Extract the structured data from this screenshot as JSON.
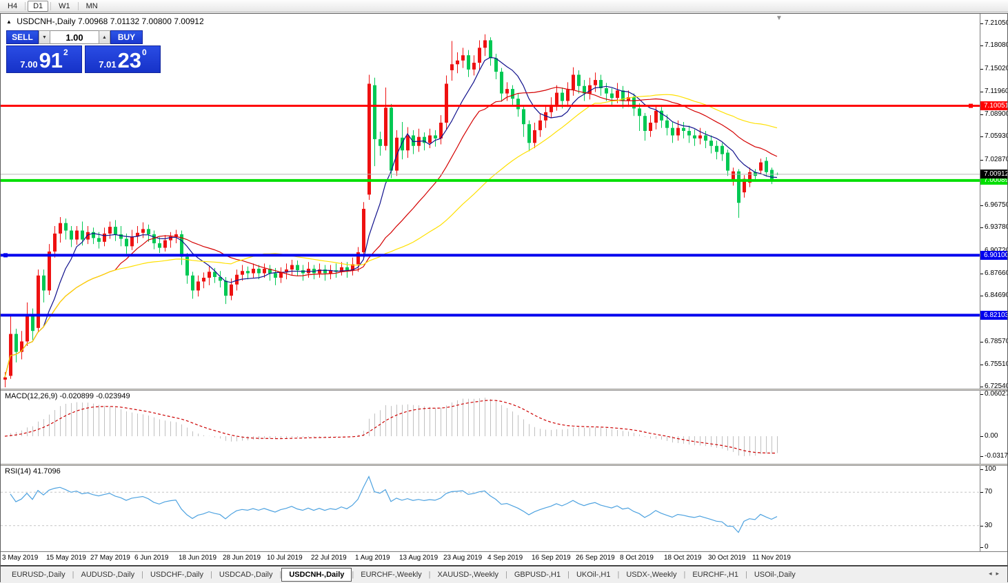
{
  "toolbar": {
    "timeframes": [
      {
        "label": "H4",
        "active": false
      },
      {
        "label": "D1",
        "active": true
      },
      {
        "label": "W1",
        "active": false
      },
      {
        "label": "MN",
        "active": false
      }
    ]
  },
  "chart": {
    "collapse_icon": "▲",
    "shift_icon": "▼",
    "symbol_title": "USDCNH-,Daily",
    "ohlc": {
      "open": "7.00968",
      "high": "7.01132",
      "low": "7.00800",
      "close": "7.00912"
    },
    "trade_panel": {
      "sell_label": "SELL",
      "buy_label": "BUY",
      "volume": "1.00",
      "down_arrow": "▼",
      "up_arrow": "▲",
      "sell_price_prefix": "7.00",
      "sell_price_big": "91",
      "sell_price_sup": "2",
      "buy_price_prefix": "7.01",
      "buy_price_big": "23",
      "buy_price_sup": "0"
    }
  },
  "chart_data": {
    "type": "candlestick",
    "title": "USDCNH-,Daily",
    "symbol": "USDCNH",
    "timeframe": "Daily",
    "ylim": [
      6.7254,
      7.2105
    ],
    "price_axis_ticks": [
      7.2105,
      7.1808,
      7.1502,
      7.1196,
      7.089,
      7.0593,
      7.0287,
      6.9981,
      6.9675,
      6.9378,
      6.9072,
      6.8766,
      6.8469,
      6.8163,
      6.7857,
      6.7551,
      6.7254
    ],
    "x_labels": [
      "3 May 2019",
      "15 May 2019",
      "27 May 2019",
      "6 Jun 2019",
      "18 Jun 2019",
      "28 Jun 2019",
      "10 Jul 2019",
      "22 Jul 2019",
      "1 Aug 2019",
      "13 Aug 2019",
      "23 Aug 2019",
      "4 Sep 2019",
      "16 Sep 2019",
      "26 Sep 2019",
      "8 Oct 2019",
      "18 Oct 2019",
      "30 Oct 2019",
      "11 Nov 2019"
    ],
    "bars_per_label": 8,
    "bull_color": "#EE1111",
    "bear_color": "#00C853",
    "hlines": [
      {
        "price": 7.10051,
        "label": "7.10051",
        "color": "#FF0000",
        "width": 3
      },
      {
        "price": 7.00089,
        "label": "7.00089",
        "color": "#00DE00",
        "width": 4
      },
      {
        "price": 6.901,
        "label": "6.90100",
        "color": "#0000EE",
        "width": 4
      },
      {
        "price": 6.82103,
        "label": "6.82103",
        "color": "#0000EE",
        "width": 4
      }
    ],
    "current_price": {
      "value": 7.00912,
      "label": "7.00912",
      "line_color": "#B8B8B8",
      "tag_color": "#000000"
    },
    "ma_lines": [
      {
        "period": 8,
        "color": "#10108C"
      },
      {
        "period": 21,
        "color": "#D40000"
      },
      {
        "period": 42,
        "color": "#FFE000"
      }
    ],
    "candles": [
      [
        6.735,
        6.745,
        6.722,
        6.738
      ],
      [
        6.74,
        6.822,
        6.736,
        6.796
      ],
      [
        6.796,
        6.803,
        6.758,
        6.772
      ],
      [
        6.772,
        6.8,
        6.762,
        6.786
      ],
      [
        6.786,
        6.838,
        6.78,
        6.822
      ],
      [
        6.822,
        6.83,
        6.788,
        6.8
      ],
      [
        6.804,
        6.882,
        6.798,
        6.874
      ],
      [
        6.874,
        6.882,
        6.838,
        6.854
      ],
      [
        6.854,
        6.916,
        6.848,
        6.906
      ],
      [
        6.906,
        6.94,
        6.898,
        6.93
      ],
      [
        6.93,
        6.952,
        6.918,
        6.944
      ],
      [
        6.944,
        6.95,
        6.922,
        6.934
      ],
      [
        6.934,
        6.94,
        6.912,
        6.922
      ],
      [
        6.922,
        6.94,
        6.915,
        6.934
      ],
      [
        6.934,
        6.946,
        6.914,
        6.922
      ],
      [
        6.922,
        6.94,
        6.916,
        6.932
      ],
      [
        6.932,
        6.938,
        6.916,
        6.924
      ],
      [
        6.924,
        6.932,
        6.91,
        6.919
      ],
      [
        6.919,
        6.938,
        6.913,
        6.93
      ],
      [
        6.93,
        6.946,
        6.923,
        6.939
      ],
      [
        6.939,
        6.948,
        6.92,
        6.929
      ],
      [
        6.929,
        6.94,
        6.913,
        6.923
      ],
      [
        6.923,
        6.93,
        6.903,
        6.913
      ],
      [
        6.913,
        6.935,
        6.908,
        6.926
      ],
      [
        6.926,
        6.94,
        6.917,
        6.931
      ],
      [
        6.931,
        6.945,
        6.924,
        6.936
      ],
      [
        6.936,
        6.942,
        6.919,
        6.929
      ],
      [
        6.929,
        6.934,
        6.909,
        6.917
      ],
      [
        6.917,
        6.925,
        6.904,
        6.911
      ],
      [
        6.911,
        6.928,
        6.906,
        6.921
      ],
      [
        6.921,
        6.932,
        6.911,
        6.926
      ],
      [
        6.926,
        6.935,
        6.917,
        6.929
      ],
      [
        6.929,
        6.934,
        6.888,
        6.899
      ],
      [
        6.899,
        6.904,
        6.863,
        6.874
      ],
      [
        6.874,
        6.879,
        6.843,
        6.854
      ],
      [
        6.854,
        6.874,
        6.846,
        6.866
      ],
      [
        6.866,
        6.878,
        6.857,
        6.871
      ],
      [
        6.871,
        6.886,
        6.861,
        6.879
      ],
      [
        6.879,
        6.884,
        6.864,
        6.872
      ],
      [
        6.872,
        6.88,
        6.858,
        6.867
      ],
      [
        6.867,
        6.872,
        6.836,
        6.847
      ],
      [
        6.847,
        6.87,
        6.841,
        6.862
      ],
      [
        6.862,
        6.882,
        6.854,
        6.875
      ],
      [
        6.875,
        6.888,
        6.867,
        6.88
      ],
      [
        6.88,
        6.886,
        6.869,
        6.877
      ],
      [
        6.877,
        6.89,
        6.871,
        6.883
      ],
      [
        6.883,
        6.888,
        6.869,
        6.877
      ],
      [
        6.877,
        6.89,
        6.871,
        6.883
      ],
      [
        6.883,
        6.888,
        6.867,
        6.877
      ],
      [
        6.877,
        6.884,
        6.861,
        6.871
      ],
      [
        6.871,
        6.885,
        6.864,
        6.878
      ],
      [
        6.878,
        6.89,
        6.869,
        6.882
      ],
      [
        6.882,
        6.895,
        6.874,
        6.888
      ],
      [
        6.888,
        6.894,
        6.873,
        6.881
      ],
      [
        6.881,
        6.888,
        6.867,
        6.877
      ],
      [
        6.877,
        6.892,
        6.871,
        6.883
      ],
      [
        6.883,
        6.888,
        6.869,
        6.877
      ],
      [
        6.877,
        6.89,
        6.871,
        6.882
      ],
      [
        6.882,
        6.888,
        6.867,
        6.877
      ],
      [
        6.877,
        6.888,
        6.869,
        6.881
      ],
      [
        6.881,
        6.89,
        6.871,
        6.879
      ],
      [
        6.879,
        6.892,
        6.874,
        6.885
      ],
      [
        6.885,
        6.892,
        6.871,
        6.881
      ],
      [
        6.881,
        6.898,
        6.874,
        6.889
      ],
      [
        6.889,
        6.912,
        6.879,
        6.905
      ],
      [
        6.905,
        6.972,
        6.898,
        6.963
      ],
      [
        6.982,
        7.142,
        6.975,
        7.13
      ],
      [
        7.128,
        7.138,
        7.02,
        7.056
      ],
      [
        7.056,
        7.066,
        7.034,
        7.047
      ],
      [
        7.047,
        7.125,
        7.041,
        7.098
      ],
      [
        7.098,
        7.103,
        7.004,
        7.014
      ],
      [
        7.014,
        7.068,
        7.007,
        7.058
      ],
      [
        7.058,
        7.079,
        7.029,
        7.041
      ],
      [
        7.041,
        7.072,
        7.031,
        7.061
      ],
      [
        7.061,
        7.068,
        7.036,
        7.047
      ],
      [
        7.047,
        7.07,
        7.039,
        7.059
      ],
      [
        7.059,
        7.065,
        7.041,
        7.051
      ],
      [
        7.051,
        7.07,
        7.044,
        7.061
      ],
      [
        7.061,
        7.068,
        7.046,
        7.057
      ],
      [
        7.057,
        7.088,
        7.049,
        7.078
      ],
      [
        7.078,
        7.141,
        7.069,
        7.13
      ],
      [
        7.148,
        7.187,
        7.134,
        7.156
      ],
      [
        7.156,
        7.172,
        7.144,
        7.161
      ],
      [
        7.161,
        7.178,
        7.151,
        7.168
      ],
      [
        7.168,
        7.175,
        7.139,
        7.149
      ],
      [
        7.149,
        7.168,
        7.141,
        7.158
      ],
      [
        7.158,
        7.188,
        7.149,
        7.178
      ],
      [
        7.178,
        7.196,
        7.167,
        7.188
      ],
      [
        7.188,
        7.192,
        7.154,
        7.164
      ],
      [
        7.164,
        7.17,
        7.136,
        7.146
      ],
      [
        7.146,
        7.151,
        7.106,
        7.117
      ],
      [
        7.117,
        7.132,
        7.107,
        7.123
      ],
      [
        7.123,
        7.128,
        7.1,
        7.11
      ],
      [
        7.11,
        7.117,
        7.086,
        7.096
      ],
      [
        7.096,
        7.101,
        7.059,
        7.076
      ],
      [
        7.076,
        7.081,
        7.04,
        7.051
      ],
      [
        7.051,
        7.078,
        7.044,
        7.068
      ],
      [
        7.068,
        7.09,
        7.059,
        7.081
      ],
      [
        7.081,
        7.1,
        7.071,
        7.092
      ],
      [
        7.092,
        7.112,
        7.084,
        7.102
      ],
      [
        7.102,
        7.128,
        7.094,
        7.118
      ],
      [
        7.118,
        7.125,
        7.097,
        7.107
      ],
      [
        7.107,
        7.132,
        7.099,
        7.122
      ],
      [
        7.122,
        7.152,
        7.114,
        7.142
      ],
      [
        7.142,
        7.148,
        7.117,
        7.127
      ],
      [
        7.127,
        7.135,
        7.107,
        7.117
      ],
      [
        7.117,
        7.138,
        7.109,
        7.128
      ],
      [
        7.128,
        7.145,
        7.119,
        7.135
      ],
      [
        7.135,
        7.142,
        7.114,
        7.124
      ],
      [
        7.124,
        7.131,
        7.107,
        7.117
      ],
      [
        7.117,
        7.124,
        7.101,
        7.111
      ],
      [
        7.111,
        7.131,
        7.104,
        7.121
      ],
      [
        7.121,
        7.127,
        7.097,
        7.107
      ],
      [
        7.107,
        7.121,
        7.099,
        7.112
      ],
      [
        7.112,
        7.117,
        7.087,
        7.097
      ],
      [
        7.097,
        7.104,
        7.067,
        7.087
      ],
      [
        7.087,
        7.091,
        7.054,
        7.067
      ],
      [
        7.067,
        7.088,
        7.059,
        7.078
      ],
      [
        7.078,
        7.101,
        7.069,
        7.094
      ],
      [
        7.094,
        7.099,
        7.071,
        7.081
      ],
      [
        7.081,
        7.089,
        7.061,
        7.071
      ],
      [
        7.071,
        7.079,
        7.051,
        7.061
      ],
      [
        7.061,
        7.081,
        7.054,
        7.071
      ],
      [
        7.071,
        7.079,
        7.057,
        7.067
      ],
      [
        7.067,
        7.074,
        7.051,
        7.061
      ],
      [
        7.061,
        7.069,
        7.047,
        7.057
      ],
      [
        7.057,
        7.071,
        7.049,
        7.061
      ],
      [
        7.061,
        7.067,
        7.044,
        7.054
      ],
      [
        7.054,
        7.061,
        7.037,
        7.047
      ],
      [
        7.047,
        7.054,
        7.029,
        7.039
      ],
      [
        7.047,
        7.051,
        7.027,
        7.036
      ],
      [
        7.038,
        7.042,
        7.007,
        7.014
      ],
      [
        7.001,
        7.018,
        6.994,
        7.013
      ],
      [
        7.013,
        7.016,
        6.951,
        6.971
      ],
      [
        6.985,
        7.008,
        6.978,
        7.003
      ],
      [
        6.998,
        7.018,
        6.992,
        7.012
      ],
      [
        7.012,
        7.016,
        7.001,
        7.007
      ],
      [
        7.014,
        7.03,
        7.009,
        7.025
      ],
      [
        7.027,
        7.032,
        7.006,
        7.012
      ],
      [
        7.015,
        7.018,
        6.996,
        7.0
      ],
      [
        7.00968,
        7.01132,
        7.008,
        7.00912
      ]
    ]
  },
  "indicators": {
    "macd": {
      "name_label": "MACD(12,26,9)",
      "values_label": "-0.020899 -0.023949",
      "axis_labels": [
        "0.060273",
        "0.00",
        "-0.031725"
      ],
      "fast": 12,
      "slow": 26,
      "signal": 9,
      "histogram_color": "#C0C0C0",
      "signal_color": "#CC0000"
    },
    "rsi": {
      "name_label": "RSI(14)",
      "value_label": "41.7096",
      "axis_labels": [
        "100",
        "70",
        "30",
        "0"
      ],
      "period": 14,
      "levels": [
        70,
        30
      ],
      "line_color": "#4DA2E0"
    }
  },
  "tabs": {
    "items": [
      {
        "label": "EURUSD-,Daily",
        "active": false
      },
      {
        "label": "AUDUSD-,Daily",
        "active": false
      },
      {
        "label": "USDCHF-,Daily",
        "active": false
      },
      {
        "label": "USDCAD-,Daily",
        "active": false
      },
      {
        "label": "USDCNH-,Daily",
        "active": true
      },
      {
        "label": "EURCHF-,Weekly",
        "active": false
      },
      {
        "label": "XAUUSD-,Weekly",
        "active": false
      },
      {
        "label": "GBPUSD-,H1",
        "active": false
      },
      {
        "label": "UKOil-,H1",
        "active": false
      },
      {
        "label": "USDX-,Weekly",
        "active": false
      },
      {
        "label": "EURCHF-,H1",
        "active": false
      },
      {
        "label": "USOil-,Daily",
        "active": false
      }
    ],
    "nav_left": "◂",
    "nav_right": "▸"
  }
}
